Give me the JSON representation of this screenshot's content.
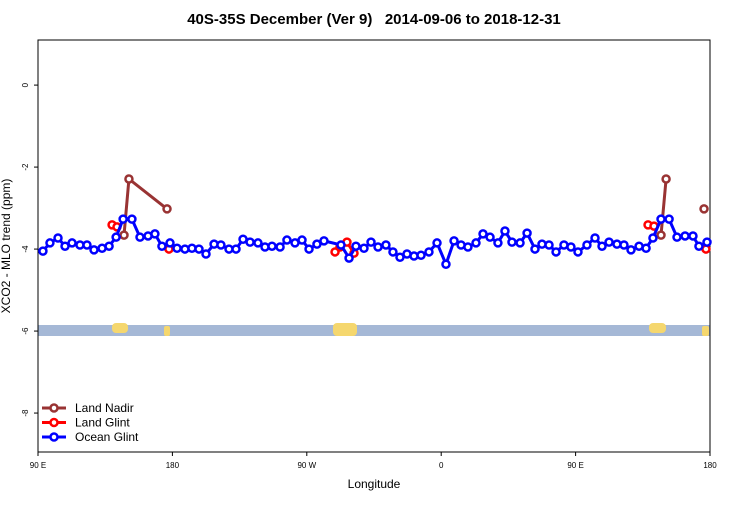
{
  "chart_data": {
    "type": "line",
    "title": "40S-35S December (Ver 9)   2014-09-06 to 2018-12-31",
    "xlabel": "Longitude",
    "ylabel": "XCO2 - MLO trend (ppm)",
    "xlim": [
      90,
      540
    ],
    "xticks": [
      {
        "value": 90,
        "label": "90 E"
      },
      {
        "value": 180,
        "label": "180"
      },
      {
        "value": 270,
        "label": "90 W"
      },
      {
        "value": 360,
        "label": "0"
      },
      {
        "value": 450,
        "label": "90 E"
      },
      {
        "value": 540,
        "label": "180"
      }
    ],
    "ylim": [
      -8.95,
      1.1
    ],
    "yticks": [
      -8,
      -6,
      -4,
      -2,
      0
    ],
    "legend": "bottom-left",
    "series": [
      {
        "name": "Land Nadir",
        "color": "#993333",
        "x": [
          147.6,
          150.9,
          176.4,
          null,
          507.2,
          510.6,
          null,
          536.0
        ],
        "values": [
          -3.66,
          -2.29,
          -3.02,
          null,
          -3.66,
          -2.29,
          null,
          -3.02
        ]
      },
      {
        "name": "Land Glint",
        "color": "#ff0000",
        "x": [
          139.6,
          142.9,
          null,
          177.7,
          null,
          288.9,
          292.2,
          296.9,
          301.6,
          null,
          498.5,
          502.5,
          null,
          537.3
        ],
        "values": [
          -3.41,
          -3.46,
          null,
          -4.0,
          null,
          -4.07,
          -3.95,
          -3.83,
          -4.1,
          null,
          -3.41,
          -3.44,
          null,
          -4.0
        ]
      },
      {
        "name": "Ocean Glint",
        "color": "#0000ff",
        "x": [
          93.3,
          98.0,
          103.4,
          108.1,
          112.8,
          118.1,
          122.8,
          127.5,
          132.9,
          137.6,
          142.3,
          147.0,
          152.9,
          158.3,
          163.7,
          168.3,
          173.0,
          178.4,
          183.1,
          188.4,
          193.1,
          197.8,
          202.5,
          207.9,
          212.5,
          217.9,
          222.6,
          227.3,
          232.0,
          237.3,
          242.0,
          246.7,
          252.1,
          256.7,
          262.1,
          266.8,
          271.5,
          276.8,
          281.5,
          292.9,
          298.3,
          302.9,
          308.3,
          313.0,
          317.7,
          323.0,
          327.7,
          332.4,
          337.1,
          341.8,
          346.5,
          351.8,
          357.2,
          363.2,
          368.6,
          373.3,
          377.9,
          383.3,
          388.0,
          392.7,
          398.0,
          402.7,
          407.4,
          412.8,
          417.5,
          422.8,
          427.5,
          432.2,
          436.9,
          442.2,
          446.9,
          451.6,
          457.6,
          463.0,
          467.7,
          472.4,
          477.7,
          482.4,
          487.1,
          492.5,
          497.2,
          501.8,
          507.2,
          512.6,
          517.9,
          523.3,
          528.6,
          532.6,
          538.0
        ],
        "values": [
          -4.05,
          -3.85,
          -3.73,
          -3.93,
          -3.85,
          -3.9,
          -3.9,
          -4.02,
          -3.98,
          -3.93,
          -3.71,
          -3.27,
          -3.27,
          -3.71,
          -3.68,
          -3.63,
          -3.93,
          -3.85,
          -3.98,
          -4.0,
          -3.98,
          -4.0,
          -4.12,
          -3.88,
          -3.9,
          -4.0,
          -4.0,
          -3.76,
          -3.83,
          -3.85,
          -3.95,
          -3.93,
          -3.95,
          -3.78,
          -3.85,
          -3.78,
          -4.0,
          -3.88,
          -3.8,
          -3.9,
          -4.22,
          -3.93,
          -3.98,
          -3.83,
          -3.95,
          -3.9,
          -4.07,
          -4.2,
          -4.12,
          -4.17,
          -4.15,
          -4.07,
          -3.85,
          -4.37,
          -3.8,
          -3.9,
          -3.95,
          -3.85,
          -3.63,
          -3.71,
          -3.85,
          -3.56,
          -3.83,
          -3.85,
          -3.61,
          -4.0,
          -3.88,
          -3.9,
          -4.07,
          -3.9,
          -3.95,
          -4.07,
          -3.9,
          -3.73,
          -3.93,
          -3.83,
          -3.88,
          -3.9,
          -4.02,
          -3.93,
          -3.98,
          -3.73,
          -3.27,
          -3.27,
          -3.71,
          -3.68,
          -3.68,
          -3.93,
          -3.83
        ]
      }
    ]
  }
}
